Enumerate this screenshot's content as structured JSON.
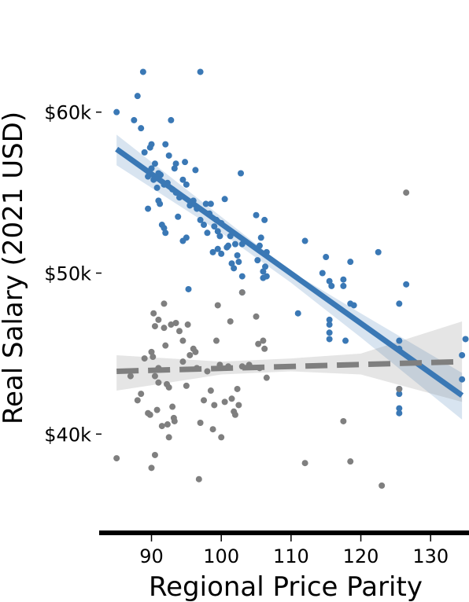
{
  "chart_data": {
    "type": "scatter",
    "title": "",
    "xlabel": "Regional Price Parity",
    "ylabel": "Real Salary (2021 USD)",
    "xlim": [
      82.5,
      135.5
    ],
    "ylim": [
      34500,
      65500
    ],
    "x_ticks": [
      90,
      100,
      110,
      120,
      130
    ],
    "x_tick_labels": [
      "90",
      "100",
      "110",
      "120",
      "130"
    ],
    "y_ticks": [
      40000,
      50000,
      60000
    ],
    "y_tick_labels": [
      "$40k",
      "$50k",
      "$60k"
    ],
    "grid": false,
    "legend": "none",
    "colors": {
      "blue": "#3a78b5",
      "gray": "#7f7f7f",
      "blue_band": "#c5d8ec",
      "gray_band": "#e3e3e3"
    },
    "series": [
      {
        "color": "#3a78b5",
        "trend": {
          "style": "solid",
          "x": [
            85,
            134.5
          ],
          "y": [
            57700,
            42400
          ]
        },
        "band": {
          "x": [
            85,
            100,
            110,
            120,
            134.5
          ],
          "lower": [
            56700,
            52500,
            49400,
            46000,
            40900
          ],
          "upper": [
            58600,
            53500,
            50100,
            47500,
            43800
          ]
        },
        "points": [
          [
            85,
            60000
          ],
          [
            87.5,
            59500
          ],
          [
            88,
            61000
          ],
          [
            88.5,
            59000
          ],
          [
            88.8,
            62500
          ],
          [
            89,
            57500
          ],
          [
            89.5,
            56000
          ],
          [
            89.5,
            54000
          ],
          [
            89.8,
            57800
          ],
          [
            90,
            58000
          ],
          [
            90,
            56500
          ],
          [
            90.3,
            55800
          ],
          [
            90.5,
            56800
          ],
          [
            90.8,
            55300
          ],
          [
            91,
            54500
          ],
          [
            91,
            56200
          ],
          [
            91.2,
            54300
          ],
          [
            91.3,
            56100
          ],
          [
            91.5,
            53000
          ],
          [
            91.8,
            52800
          ],
          [
            91.8,
            55500
          ],
          [
            92,
            58000
          ],
          [
            92,
            52500
          ],
          [
            92.3,
            55600
          ],
          [
            92.5,
            57300
          ],
          [
            92.8,
            59500
          ],
          [
            93,
            55200
          ],
          [
            93.3,
            56500
          ],
          [
            93.5,
            55000
          ],
          [
            93.5,
            56800
          ],
          [
            93.8,
            53500
          ],
          [
            94,
            54700
          ],
          [
            94.5,
            55800
          ],
          [
            94.5,
            52000
          ],
          [
            94.8,
            56900
          ],
          [
            95,
            55500
          ],
          [
            95,
            52200
          ],
          [
            95.3,
            49000
          ],
          [
            95.5,
            54200
          ],
          [
            96,
            54500
          ],
          [
            96.3,
            56400
          ],
          [
            96.5,
            54000
          ],
          [
            97,
            62500
          ],
          [
            97,
            53300
          ],
          [
            97.5,
            53000
          ],
          [
            97.8,
            54300
          ],
          [
            98,
            52500
          ],
          [
            98.3,
            53700
          ],
          [
            98.5,
            54300
          ],
          [
            98.8,
            51300
          ],
          [
            99,
            52900
          ],
          [
            99.3,
            53300
          ],
          [
            99.5,
            52600
          ],
          [
            99.5,
            51500
          ],
          [
            99.8,
            52300
          ],
          [
            100,
            51200
          ],
          [
            100,
            53100
          ],
          [
            100.5,
            54600
          ],
          [
            100.8,
            51600
          ],
          [
            101,
            51700
          ],
          [
            101.3,
            52300
          ],
          [
            101.5,
            50600
          ],
          [
            101.8,
            50300
          ],
          [
            102,
            51800
          ],
          [
            102.3,
            51100
          ],
          [
            102.5,
            50700
          ],
          [
            102.8,
            56200
          ],
          [
            103,
            49800
          ],
          [
            103,
            48800
          ],
          [
            103,
            51800
          ],
          [
            105,
            53600
          ],
          [
            105.2,
            50800
          ],
          [
            105.5,
            51700
          ],
          [
            105.7,
            52200
          ],
          [
            106,
            50100
          ],
          [
            106,
            49700
          ],
          [
            106.2,
            53300
          ],
          [
            106.3,
            50400
          ],
          [
            106.5,
            49800
          ],
          [
            106.5,
            51300
          ],
          [
            111,
            47500
          ],
          [
            112,
            52000
          ],
          [
            114.5,
            50000
          ],
          [
            115,
            51000
          ],
          [
            115.5,
            49500
          ],
          [
            115.5,
            47100
          ],
          [
            115.5,
            46800
          ],
          [
            115.5,
            46300
          ],
          [
            115.5,
            45900
          ],
          [
            115.8,
            49200
          ],
          [
            117.5,
            49600
          ],
          [
            117.5,
            49200
          ],
          [
            117.8,
            45800
          ],
          [
            118.5,
            48100
          ],
          [
            118.5,
            50700
          ],
          [
            119,
            48000
          ],
          [
            122.5,
            51300
          ],
          [
            125.5,
            48100
          ],
          [
            125.5,
            45800
          ],
          [
            125.5,
            45300
          ],
          [
            125.5,
            42800
          ],
          [
            125.5,
            42500
          ],
          [
            125.5,
            41600
          ],
          [
            125.5,
            41300
          ],
          [
            126.5,
            49300
          ],
          [
            134.5,
            44900
          ],
          [
            134.5,
            43400
          ],
          [
            135,
            45900
          ]
        ]
      },
      {
        "color": "#7f7f7f",
        "trend": {
          "style": "dashed",
          "x": [
            85,
            134.5
          ],
          "y": [
            43900,
            44500
          ]
        },
        "band": {
          "x": [
            85,
            100,
            110,
            120,
            134.5
          ],
          "lower": [
            42700,
            43700,
            43900,
            43700,
            42000
          ],
          "upper": [
            44900,
            44500,
            44700,
            45000,
            47000
          ]
        },
        "points": [
          [
            85,
            38500
          ],
          [
            87,
            43600
          ],
          [
            88,
            42100
          ],
          [
            88.5,
            42500
          ],
          [
            89,
            44700
          ],
          [
            89.5,
            41300
          ],
          [
            89.8,
            41200
          ],
          [
            90,
            45100
          ],
          [
            90.2,
            44800
          ],
          [
            90.3,
            47500
          ],
          [
            90.5,
            46700
          ],
          [
            90.5,
            43600
          ],
          [
            90.8,
            41500
          ],
          [
            91,
            44100
          ],
          [
            91,
            43200
          ],
          [
            91,
            47100
          ],
          [
            91.5,
            40500
          ],
          [
            91.8,
            46600
          ],
          [
            91.8,
            48100
          ],
          [
            92,
            45500
          ],
          [
            92.2,
            43100
          ],
          [
            92.3,
            40600
          ],
          [
            92.5,
            42900
          ],
          [
            92.8,
            46800
          ],
          [
            93,
            41700
          ],
          [
            93.2,
            41000
          ],
          [
            93.3,
            40800
          ],
          [
            93.5,
            46900
          ],
          [
            94,
            46400
          ],
          [
            94.5,
            45800
          ],
          [
            94.5,
            44500
          ],
          [
            95,
            43000
          ],
          [
            95.2,
            46800
          ],
          [
            95.5,
            44900
          ],
          [
            96,
            45300
          ],
          [
            96.3,
            45100
          ],
          [
            96.5,
            44100
          ],
          [
            97,
            40700
          ],
          [
            97.5,
            42100
          ],
          [
            98,
            43900
          ],
          [
            98.5,
            42700
          ],
          [
            98.8,
            40300
          ],
          [
            99,
            41800
          ],
          [
            99.3,
            45800
          ],
          [
            99.5,
            48000
          ],
          [
            99.8,
            44300
          ],
          [
            100,
            39800
          ],
          [
            100.5,
            42000
          ],
          [
            101,
            44200
          ],
          [
            101.3,
            47000
          ],
          [
            101.5,
            42200
          ],
          [
            101.8,
            41400
          ],
          [
            102,
            41200
          ],
          [
            102.3,
            42800
          ],
          [
            102.5,
            41800
          ],
          [
            103,
            44200
          ],
          [
            103,
            48800
          ],
          [
            104,
            44300
          ],
          [
            105,
            47300
          ],
          [
            105.3,
            45600
          ],
          [
            105.5,
            44100
          ],
          [
            106,
            45800
          ],
          [
            106.2,
            45300
          ],
          [
            106.5,
            43500
          ],
          [
            112,
            38200
          ],
          [
            117.5,
            40800
          ],
          [
            118.5,
            38300
          ],
          [
            123,
            36800
          ],
          [
            125.5,
            42800
          ],
          [
            126.5,
            55000
          ],
          [
            90,
            37900
          ],
          [
            92.5,
            39800
          ],
          [
            96.8,
            37200
          ],
          [
            90.5,
            38700
          ]
        ]
      }
    ]
  }
}
